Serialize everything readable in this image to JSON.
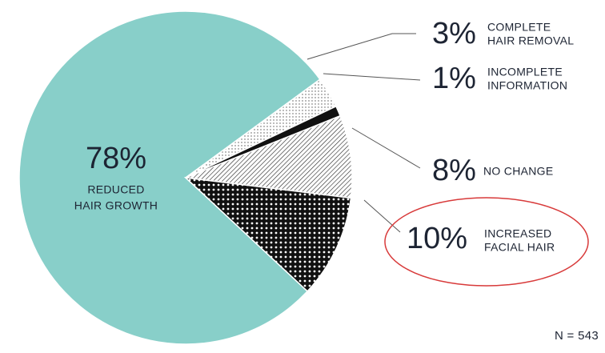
{
  "chart_data": {
    "type": "pie",
    "categories": [
      [
        "REDUCED",
        "HAIR GROWTH"
      ],
      [
        "COMPLETE",
        "HAIR REMOVAL"
      ],
      [
        "INCOMPLETE",
        "INFORMATION"
      ],
      [
        "NO CHANGE"
      ],
      [
        "INCREASED",
        "FACIAL HAIR"
      ]
    ],
    "values": [
      78,
      3,
      1,
      8,
      10
    ],
    "value_labels": [
      "78%",
      "3%",
      "1%",
      "8%",
      "10%"
    ],
    "colors": [
      "#88cfc9",
      "#ffffff",
      "#111111",
      "#ffffff",
      "#111111"
    ],
    "patterns": [
      "solid",
      "dots",
      "solid",
      "hatch",
      "dots"
    ],
    "note": "N = 543"
  }
}
